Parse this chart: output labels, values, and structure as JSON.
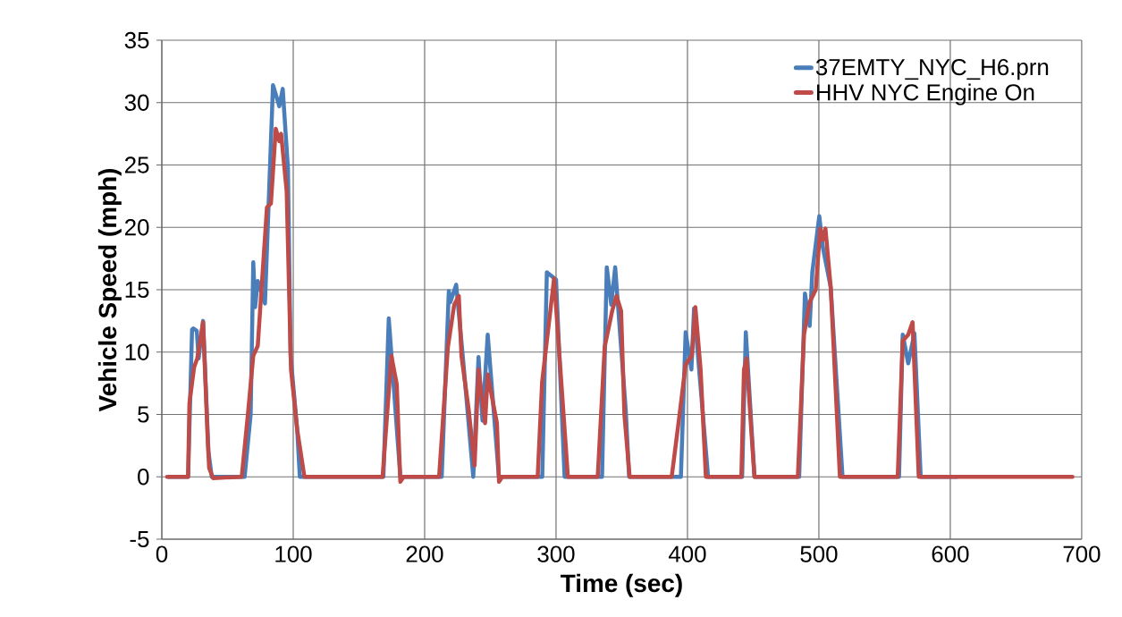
{
  "chart_data": {
    "type": "line",
    "xlabel": "Time (sec)",
    "ylabel": "Vehicle Speed (mph)",
    "xlim": [
      0,
      700
    ],
    "ylim": [
      -5,
      35
    ],
    "xticks": [
      0,
      100,
      200,
      300,
      400,
      500,
      600,
      700
    ],
    "yticks": [
      -5,
      0,
      5,
      10,
      15,
      20,
      25,
      30,
      35
    ],
    "grid": true,
    "legend": "top right",
    "series": [
      {
        "name": "37EMTY_NYC_H6.prn",
        "color": "#4a7ebb",
        "x": [
          5,
          20,
          23,
          24,
          26.6,
          28,
          31.4,
          35.5,
          38,
          63,
          67.6,
          69.6,
          71,
          73,
          78.5,
          84.6,
          89.4,
          92,
          96,
          98,
          103,
          105,
          168.6,
          172.7,
          181.5,
          213,
          218.4,
          219.5,
          224,
          229,
          237,
          241,
          244,
          248,
          256.5,
          289.5,
          293,
          300,
          306.5,
          335,
          338.6,
          342,
          345,
          353,
          355.6,
          395,
          398.6,
          403,
          405,
          415.7,
          441.6,
          444.4,
          451,
          485,
          489.4,
          493,
          495,
          500.3,
          503,
          509,
          518,
          561,
          563.8,
          568,
          572.7,
          577.5,
          605
        ],
        "values": [
          0,
          0,
          11.8,
          11.9,
          11.7,
          9.5,
          12.5,
          2,
          0,
          0,
          5,
          17.2,
          13.6,
          15.7,
          13.9,
          31.4,
          29.7,
          31.1,
          24.7,
          9.7,
          3.8,
          0,
          0,
          12.7,
          0,
          0,
          14.9,
          14,
          15.4,
          9.7,
          0,
          9.6,
          4.5,
          11.4,
          0,
          0,
          16.4,
          15.8,
          0,
          0,
          16.8,
          13.8,
          16.8,
          5.4,
          0,
          0,
          11.6,
          8.6,
          13.5,
          0,
          0,
          11.6,
          0,
          0,
          14.7,
          12.1,
          16.4,
          20.9,
          18.4,
          15.2,
          0,
          0,
          11.4,
          9.1,
          11.5,
          0,
          0
        ]
      },
      {
        "name": "HHV NYC Engine On",
        "color": "#be4b48",
        "x": [
          4,
          20,
          21,
          24.6,
          27,
          31.4,
          34.8,
          36,
          39,
          60.8,
          65.5,
          69.6,
          73,
          80,
          83,
          86.7,
          89.4,
          90.8,
          95,
          98.3,
          103,
          108.5,
          168,
          174.7,
          178.8,
          181.5,
          184,
          211,
          217.7,
          222.5,
          226,
          228,
          233.5,
          238,
          241,
          246,
          248,
          255,
          256.6,
          259,
          286,
          289.4,
          293,
          298.5,
          306.5,
          309,
          331.7,
          337,
          342.7,
          346,
          349.5,
          352,
          356,
          388,
          394,
          398.6,
          403.4,
          406,
          410,
          414,
          441,
          443,
          445,
          448.5,
          451,
          484,
          488.7,
          493,
          497.6,
          501,
          503,
          505,
          509,
          516,
          560,
          563.8,
          568,
          571.3,
          576,
          693
        ],
        "values": [
          0,
          0,
          5.9,
          8.8,
          9.5,
          12.4,
          3.3,
          0.7,
          -0.1,
          0,
          5,
          9.7,
          10.5,
          21.6,
          21.9,
          27.9,
          26.9,
          27.5,
          22.9,
          8.6,
          3.8,
          0,
          0,
          9.7,
          7.4,
          -0.4,
          0,
          0,
          10.4,
          13.8,
          14.5,
          9.7,
          5.4,
          0.9,
          8.6,
          4.3,
          8.2,
          4.3,
          -0.4,
          0,
          0,
          7.6,
          10.9,
          15.9,
          3.8,
          0,
          0,
          10.4,
          13.3,
          14.5,
          13.3,
          5,
          0,
          0,
          5,
          9,
          9.7,
          13.6,
          8.6,
          0,
          0,
          8.6,
          9.5,
          3.8,
          0,
          0,
          11.4,
          14,
          15,
          19.9,
          19,
          19.9,
          15.2,
          0,
          0,
          10.9,
          11.4,
          12.4,
          0,
          0
        ]
      }
    ]
  }
}
